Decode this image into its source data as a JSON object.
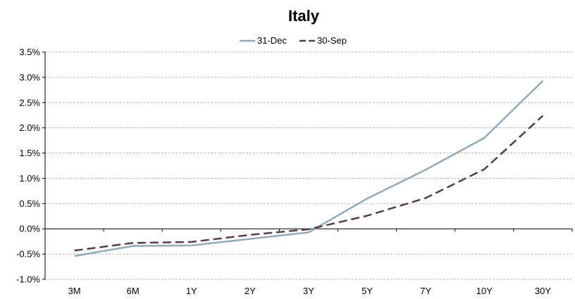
{
  "chart_data": {
    "type": "line",
    "title": "Italy",
    "xlabel": "",
    "ylabel": "",
    "categories": [
      "3M",
      "6M",
      "1Y",
      "2Y",
      "3Y",
      "5Y",
      "7Y",
      "10Y",
      "30Y"
    ],
    "series": [
      {
        "name": "31-Dec",
        "color": "#8fa9bd",
        "dash": "solid",
        "values": [
          -0.54,
          -0.34,
          -0.33,
          -0.2,
          -0.07,
          0.6,
          1.17,
          1.8,
          2.93
        ]
      },
      {
        "name": "30-Sep",
        "color": "#5c3a48",
        "dash": "dashed",
        "values": [
          -0.43,
          -0.28,
          -0.26,
          -0.12,
          -0.01,
          0.26,
          0.61,
          1.18,
          2.24
        ]
      }
    ],
    "ylim": [
      -1.0,
      3.5
    ],
    "yticks": [
      "3.5%",
      "3.0%",
      "2.5%",
      "2.0%",
      "1.5%",
      "1.0%",
      "0.5%",
      "0.0%",
      "-0.5%",
      "-1.0%"
    ],
    "ytick_values": [
      3.5,
      3.0,
      2.5,
      2.0,
      1.5,
      1.0,
      0.5,
      0.0,
      -0.5,
      -1.0
    ],
    "grid": true,
    "legend_position": "top-center"
  }
}
